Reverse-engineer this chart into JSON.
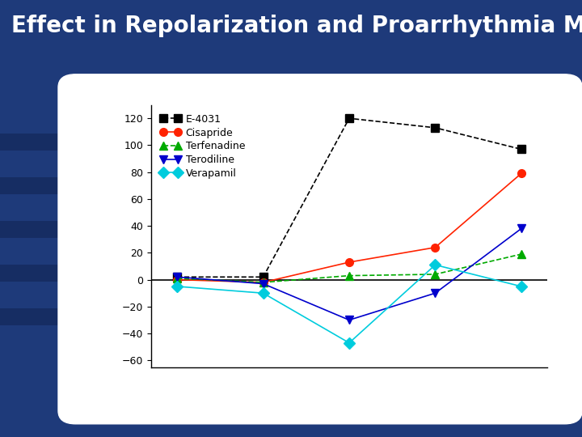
{
  "title": "Effect in Repolarization and Proarrhythmia Model",
  "background_color": "#1e3a7a",
  "stripe_color": "#162d63",
  "chart_bg": "#ffffff",
  "series": [
    {
      "name": "E-4031",
      "color": "#000000",
      "marker": "s",
      "linestyle": "--",
      "values": [
        2,
        2,
        120,
        113,
        97
      ],
      "linewidth": 1.2,
      "markersize": 7
    },
    {
      "name": "Cisapride",
      "color": "#ff2200",
      "marker": "o",
      "linestyle": "-",
      "values": [
        0,
        -2,
        13,
        24,
        79
      ],
      "linewidth": 1.2,
      "markersize": 7
    },
    {
      "name": "Terfenadine",
      "color": "#00aa00",
      "marker": "^",
      "linestyle": "--",
      "values": [
        1,
        -2,
        3,
        4,
        19
      ],
      "linewidth": 1.2,
      "markersize": 7
    },
    {
      "name": "Terodiline",
      "color": "#0000cc",
      "marker": "v",
      "linestyle": "-",
      "values": [
        2,
        -3,
        -30,
        -10,
        38
      ],
      "linewidth": 1.2,
      "markersize": 7
    },
    {
      "name": "Verapamil",
      "color": "#00ccdd",
      "marker": "D",
      "linestyle": "-",
      "values": [
        -5,
        -10,
        -47,
        11,
        -5
      ],
      "linewidth": 1.2,
      "markersize": 7
    }
  ],
  "x_positions": [
    0,
    1,
    2,
    3,
    4
  ],
  "ylim": [
    -65,
    130
  ],
  "yticks": [
    -60,
    -40,
    -20,
    0,
    20,
    40,
    60,
    80,
    100,
    120
  ],
  "title_fontsize": 20,
  "legend_fontsize": 9,
  "axis_label_fontsize": 9,
  "tick_fontsize": 9
}
